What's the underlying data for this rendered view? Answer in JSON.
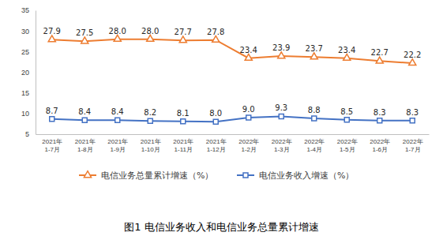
{
  "chart_data": {
    "type": "line",
    "title": "图1 电信业务收入和电信业务总量累计增速",
    "categories": [
      "2021年\n1-7月",
      "2021年\n1-8月",
      "2021年\n1-9月",
      "2021年\n1-10月",
      "2021年\n1-11月",
      "2021年\n1-12月",
      "2022年\n1-2月",
      "2022年\n1-3月",
      "2022年\n1-4月",
      "2022年\n1-5月",
      "2022年\n1-6月",
      "2022年\n1-7月"
    ],
    "series": [
      {
        "name": "电信业务总量累计增速（%）",
        "color": "#ed7d31",
        "marker": "triangle",
        "values": [
          27.9,
          27.5,
          28.0,
          28.0,
          27.7,
          27.8,
          23.4,
          23.9,
          23.7,
          23.4,
          22.7,
          22.2
        ],
        "value_labels": [
          "27.9",
          "27.5",
          "28.0",
          "28.0",
          "27.7",
          "27.8",
          "23.4",
          "23.9",
          "23.7",
          "23.4",
          "22.7",
          "22.2"
        ]
      },
      {
        "name": "电信业务收入增速（%）",
        "color": "#4472c4",
        "marker": "square",
        "values": [
          8.7,
          8.4,
          8.4,
          8.2,
          8.1,
          8.0,
          9.0,
          9.3,
          8.8,
          8.5,
          8.3,
          8.3
        ],
        "value_labels": [
          "8.7",
          "8.4",
          "8.4",
          "8.2",
          "8.1",
          "8.0",
          "9.0",
          "9.3",
          "8.8",
          "8.5",
          "8.3",
          "8.3"
        ]
      }
    ],
    "ylim": [
      5,
      35
    ],
    "yticks": [
      5,
      10,
      15,
      20,
      25,
      30,
      35
    ],
    "grid": false,
    "data_labels": true,
    "legend": "bottom"
  }
}
